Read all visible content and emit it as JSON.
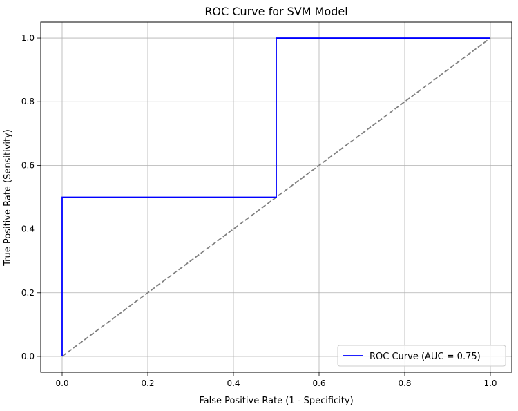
{
  "chart_data": {
    "type": "line",
    "title": "ROC Curve for SVM Model",
    "xlabel": "False Positive Rate (1 - Specificity)",
    "ylabel": "True Positive Rate (Sensitivity)",
    "xlim": [
      -0.05,
      1.05
    ],
    "ylim": [
      -0.05,
      1.05
    ],
    "xticks": [
      0.0,
      0.2,
      0.4,
      0.6,
      0.8,
      1.0
    ],
    "yticks": [
      0.0,
      0.2,
      0.4,
      0.6,
      0.8,
      1.0
    ],
    "xtick_labels": [
      "0.0",
      "0.2",
      "0.4",
      "0.6",
      "0.8",
      "1.0"
    ],
    "ytick_labels": [
      "0.0",
      "0.2",
      "0.4",
      "0.6",
      "0.8",
      "1.0"
    ],
    "grid": true,
    "legend_position": "lower-right",
    "series": [
      {
        "name": "ROC Curve (AUC = 0.75)",
        "color": "#0000ff",
        "style": "solid",
        "x": [
          0.0,
          0.0,
          0.5,
          0.5,
          1.0
        ],
        "y": [
          0.0,
          0.5,
          0.5,
          1.0,
          1.0
        ]
      },
      {
        "color": "#808080",
        "style": "dashed",
        "x": [
          0.0,
          1.0
        ],
        "y": [
          0.0,
          1.0
        ]
      }
    ]
  }
}
